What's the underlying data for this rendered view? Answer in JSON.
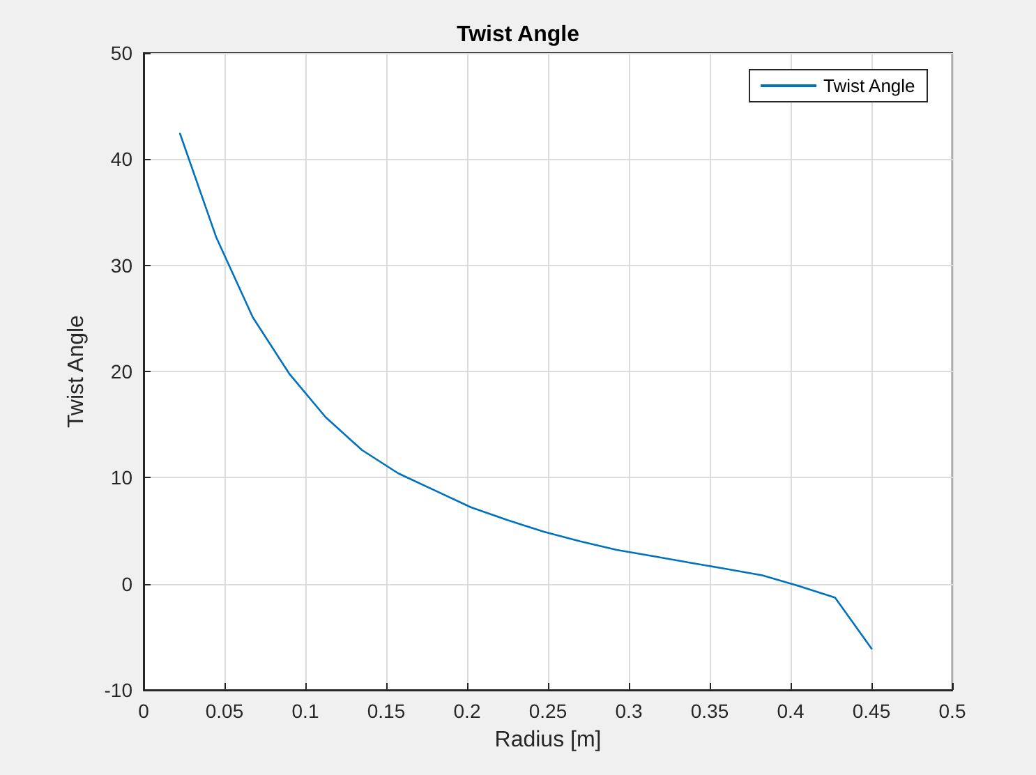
{
  "chart_data": {
    "type": "line",
    "title": "Twist Angle",
    "xlabel": "Radius [m]",
    "ylabel": "Twist Angle",
    "x": [
      0.0225,
      0.045,
      0.0675,
      0.09,
      0.1125,
      0.135,
      0.1575,
      0.18,
      0.2025,
      0.225,
      0.2475,
      0.27,
      0.2925,
      0.315,
      0.3375,
      0.36,
      0.3825,
      0.405,
      0.4275,
      0.45
    ],
    "series": [
      {
        "name": "Twist Angle",
        "color": "#0072bd",
        "values": [
          42.4,
          32.6,
          25.1,
          19.8,
          15.7,
          12.6,
          10.4,
          8.8,
          7.2,
          6.0,
          4.9,
          4.0,
          3.2,
          2.6,
          2.0,
          1.4,
          0.8,
          -0.2,
          -1.3,
          -6.1
        ]
      }
    ],
    "xlim": [
      0,
      0.5
    ],
    "xticks": [
      0,
      0.05,
      0.1,
      0.15,
      0.2,
      0.25,
      0.3,
      0.35,
      0.4,
      0.45,
      0.5
    ],
    "ylim": [
      -10,
      50
    ],
    "yticks": [
      -10,
      0,
      10,
      20,
      30,
      40,
      50
    ],
    "grid": true,
    "legend": "top right",
    "marker": "none",
    "line_style": "solid"
  }
}
